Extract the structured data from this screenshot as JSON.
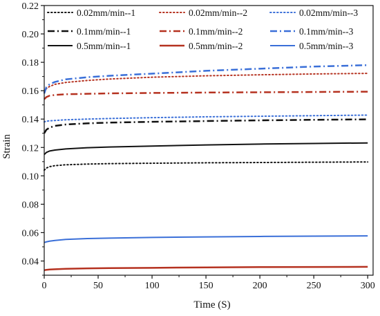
{
  "chart_data": {
    "type": "line",
    "title": "",
    "xlabel": "Time (S)",
    "ylabel": "Strain",
    "xlim": [
      0,
      305
    ],
    "ylim": [
      0.03,
      0.22
    ],
    "xticks": [
      0,
      50,
      100,
      150,
      200,
      250,
      300
    ],
    "xtick_labels": [
      "0",
      "50",
      "100",
      "150",
      "200",
      "250",
      "300"
    ],
    "yticks": [
      0.04,
      0.06,
      0.08,
      0.1,
      0.12,
      0.14,
      0.16,
      0.18,
      0.2,
      0.22
    ],
    "ytick_labels": [
      "0.04",
      "0.06",
      "0.08",
      "0.10",
      "0.12",
      "0.14",
      "0.16",
      "0.18",
      "0.20",
      "0.22"
    ],
    "grid": false,
    "legend_position": "top",
    "x": [
      0,
      2,
      5,
      10,
      20,
      40,
      60,
      100,
      150,
      200,
      250,
      300
    ],
    "series": [
      {
        "name": "0.02mm/min--1",
        "color": "#111111",
        "dash": "dot",
        "width": 2,
        "values": [
          0.104,
          0.1055,
          0.1065,
          0.1072,
          0.1078,
          0.1083,
          0.1086,
          0.1089,
          0.1092,
          0.1094,
          0.1096,
          0.1098
        ]
      },
      {
        "name": "0.02mm/min--2",
        "color": "#b5311f",
        "dash": "dot",
        "width": 2,
        "values": [
          0.159,
          0.1615,
          0.163,
          0.1645,
          0.1658,
          0.1672,
          0.1682,
          0.1695,
          0.1705,
          0.1712,
          0.1718,
          0.1722
        ]
      },
      {
        "name": "0.02mm/min--3",
        "color": "#3a6fd8",
        "dash": "dot",
        "width": 2,
        "values": [
          0.138,
          0.1385,
          0.1388,
          0.139,
          0.1395,
          0.14,
          0.1404,
          0.141,
          0.1416,
          0.142,
          0.1424,
          0.1428
        ]
      },
      {
        "name": "0.1mm/min--1",
        "color": "#111111",
        "dash": "dashdot",
        "width": 2.5,
        "values": [
          0.13,
          0.1325,
          0.134,
          0.1352,
          0.1362,
          0.137,
          0.1375,
          0.1381,
          0.1386,
          0.1391,
          0.1395,
          0.1398
        ]
      },
      {
        "name": "0.1mm/min--2",
        "color": "#b5311f",
        "dash": "dashdot",
        "width": 2.5,
        "values": [
          0.154,
          0.1555,
          0.1565,
          0.157,
          0.1575,
          0.1578,
          0.1581,
          0.1584,
          0.1587,
          0.1589,
          0.1591,
          0.1593
        ]
      },
      {
        "name": "0.1mm/min--3",
        "color": "#3a6fd8",
        "dash": "dashdot",
        "width": 2.5,
        "values": [
          0.158,
          0.1625,
          0.1645,
          0.1662,
          0.168,
          0.1695,
          0.1705,
          0.172,
          0.174,
          0.1755,
          0.177,
          0.178
        ]
      },
      {
        "name": "0.5mm/min--1",
        "color": "#111111",
        "dash": "solid",
        "width": 2,
        "values": [
          0.115,
          0.1165,
          0.1175,
          0.1182,
          0.119,
          0.1198,
          0.1203,
          0.121,
          0.1218,
          0.1224,
          0.1228,
          0.1232
        ]
      },
      {
        "name": "0.5mm/min--2",
        "color": "#b5311f",
        "dash": "solid",
        "width": 2.5,
        "values": [
          0.0335,
          0.0338,
          0.034,
          0.0342,
          0.0345,
          0.0348,
          0.035,
          0.0352,
          0.0355,
          0.0357,
          0.0358,
          0.0359
        ]
      },
      {
        "name": "0.5mm/min--3",
        "color": "#3a6fd8",
        "dash": "solid",
        "width": 2,
        "values": [
          0.053,
          0.0535,
          0.054,
          0.0545,
          0.0552,
          0.0558,
          0.0561,
          0.0566,
          0.057,
          0.0573,
          0.0575,
          0.0577
        ]
      }
    ]
  }
}
